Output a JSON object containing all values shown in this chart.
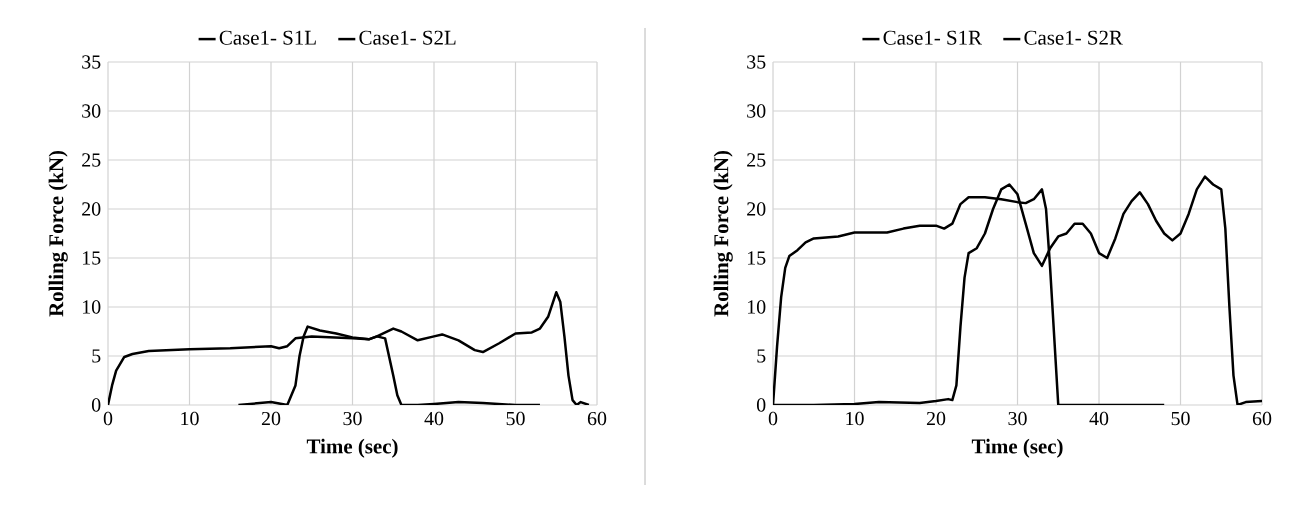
{
  "chart_data": [
    {
      "type": "line",
      "xlabel": "Time (sec)",
      "ylabel": "Rolling Force (kN)",
      "xlim": [
        0,
        60
      ],
      "xticks": [
        0,
        10,
        20,
        30,
        40,
        50,
        60
      ],
      "ylim": [
        0,
        35
      ],
      "yticks": [
        0,
        5,
        10,
        15,
        20,
        25,
        30,
        35
      ],
      "grid": true,
      "legend": "top",
      "series": [
        {
          "name": "Case1- S1L",
          "color": "#000000",
          "x": [
            0,
            0.5,
            1,
            2,
            3,
            5,
            10,
            15,
            20,
            21,
            22,
            23,
            25,
            30,
            32,
            33,
            34,
            35,
            35.5,
            36,
            38,
            40,
            43,
            46,
            50,
            53
          ],
          "values": [
            0,
            2,
            3.5,
            4.9,
            5.2,
            5.5,
            5.7,
            5.8,
            6.0,
            5.8,
            6.0,
            6.8,
            7.0,
            6.8,
            6.7,
            7.0,
            6.8,
            3,
            1,
            0,
            0,
            0.1,
            0.3,
            0.2,
            0,
            0
          ]
        },
        {
          "name": "Case1- S2L",
          "color": "#000000",
          "x": [
            16,
            20,
            22,
            23,
            23.5,
            24,
            24.5,
            26,
            28,
            30,
            32,
            33,
            35,
            36,
            38,
            40,
            41,
            43,
            45,
            46,
            48,
            50,
            52,
            53,
            54,
            55,
            55.5,
            56,
            56.5,
            57,
            57.5,
            58,
            59
          ],
          "values": [
            0,
            0.3,
            0,
            2,
            5,
            7,
            8,
            7.6,
            7.3,
            6.9,
            6.7,
            7.0,
            7.8,
            7.5,
            6.6,
            7.0,
            7.2,
            6.6,
            5.6,
            5.4,
            6.3,
            7.3,
            7.4,
            7.8,
            9,
            11.5,
            10.5,
            7,
            3,
            0.5,
            0,
            0.3,
            0
          ]
        }
      ]
    },
    {
      "type": "line",
      "xlabel": "Time (sec)",
      "ylabel": "Rolling Force (kN)",
      "xlim": [
        0,
        60
      ],
      "xticks": [
        0,
        10,
        20,
        30,
        40,
        50,
        60
      ],
      "ylim": [
        0,
        35
      ],
      "yticks": [
        0,
        5,
        10,
        15,
        20,
        25,
        30,
        35
      ],
      "grid": true,
      "legend": "top",
      "series": [
        {
          "name": "Case1- S1R",
          "color": "#000000",
          "x": [
            0,
            0.5,
            1,
            1.5,
            2,
            3,
            4,
            5,
            8,
            10,
            12,
            14,
            16,
            18,
            20,
            21,
            22,
            23,
            24,
            26,
            28,
            30,
            31,
            32,
            33,
            33.5,
            34,
            34.5,
            35,
            39,
            48
          ],
          "values": [
            0,
            6,
            11,
            14,
            15.2,
            15.8,
            16.6,
            17,
            17.2,
            17.6,
            17.6,
            17.6,
            18,
            18.3,
            18.3,
            18,
            18.5,
            20.5,
            21.2,
            21.2,
            21,
            20.7,
            20.6,
            21,
            22,
            20,
            14,
            7,
            0,
            0,
            0
          ]
        },
        {
          "name": "Case1- S2R",
          "color": "#000000",
          "x": [
            0,
            5,
            10,
            13,
            18,
            20,
            21.5,
            22,
            22.5,
            23,
            23.5,
            24,
            25,
            26,
            27,
            28,
            29,
            30,
            31,
            32,
            33,
            34,
            35,
            36,
            37,
            38,
            39,
            40,
            41,
            42,
            43,
            44,
            45,
            46,
            47,
            48,
            49,
            50,
            51,
            52,
            53,
            54,
            55,
            55.5,
            56,
            56.5,
            57,
            58,
            60
          ],
          "values": [
            0,
            0,
            0.1,
            0.3,
            0.2,
            0.4,
            0.6,
            0.5,
            2,
            8,
            13,
            15.5,
            16,
            17.5,
            20,
            22,
            22.5,
            21.5,
            18.5,
            15.5,
            14.2,
            16,
            17.2,
            17.5,
            18.5,
            18.5,
            17.5,
            15.5,
            15,
            17,
            19.5,
            20.8,
            21.7,
            20.5,
            18.8,
            17.5,
            16.8,
            17.5,
            19.5,
            22,
            23.3,
            22.5,
            22,
            18,
            10,
            3,
            0,
            0.3,
            0.4
          ]
        }
      ]
    }
  ]
}
